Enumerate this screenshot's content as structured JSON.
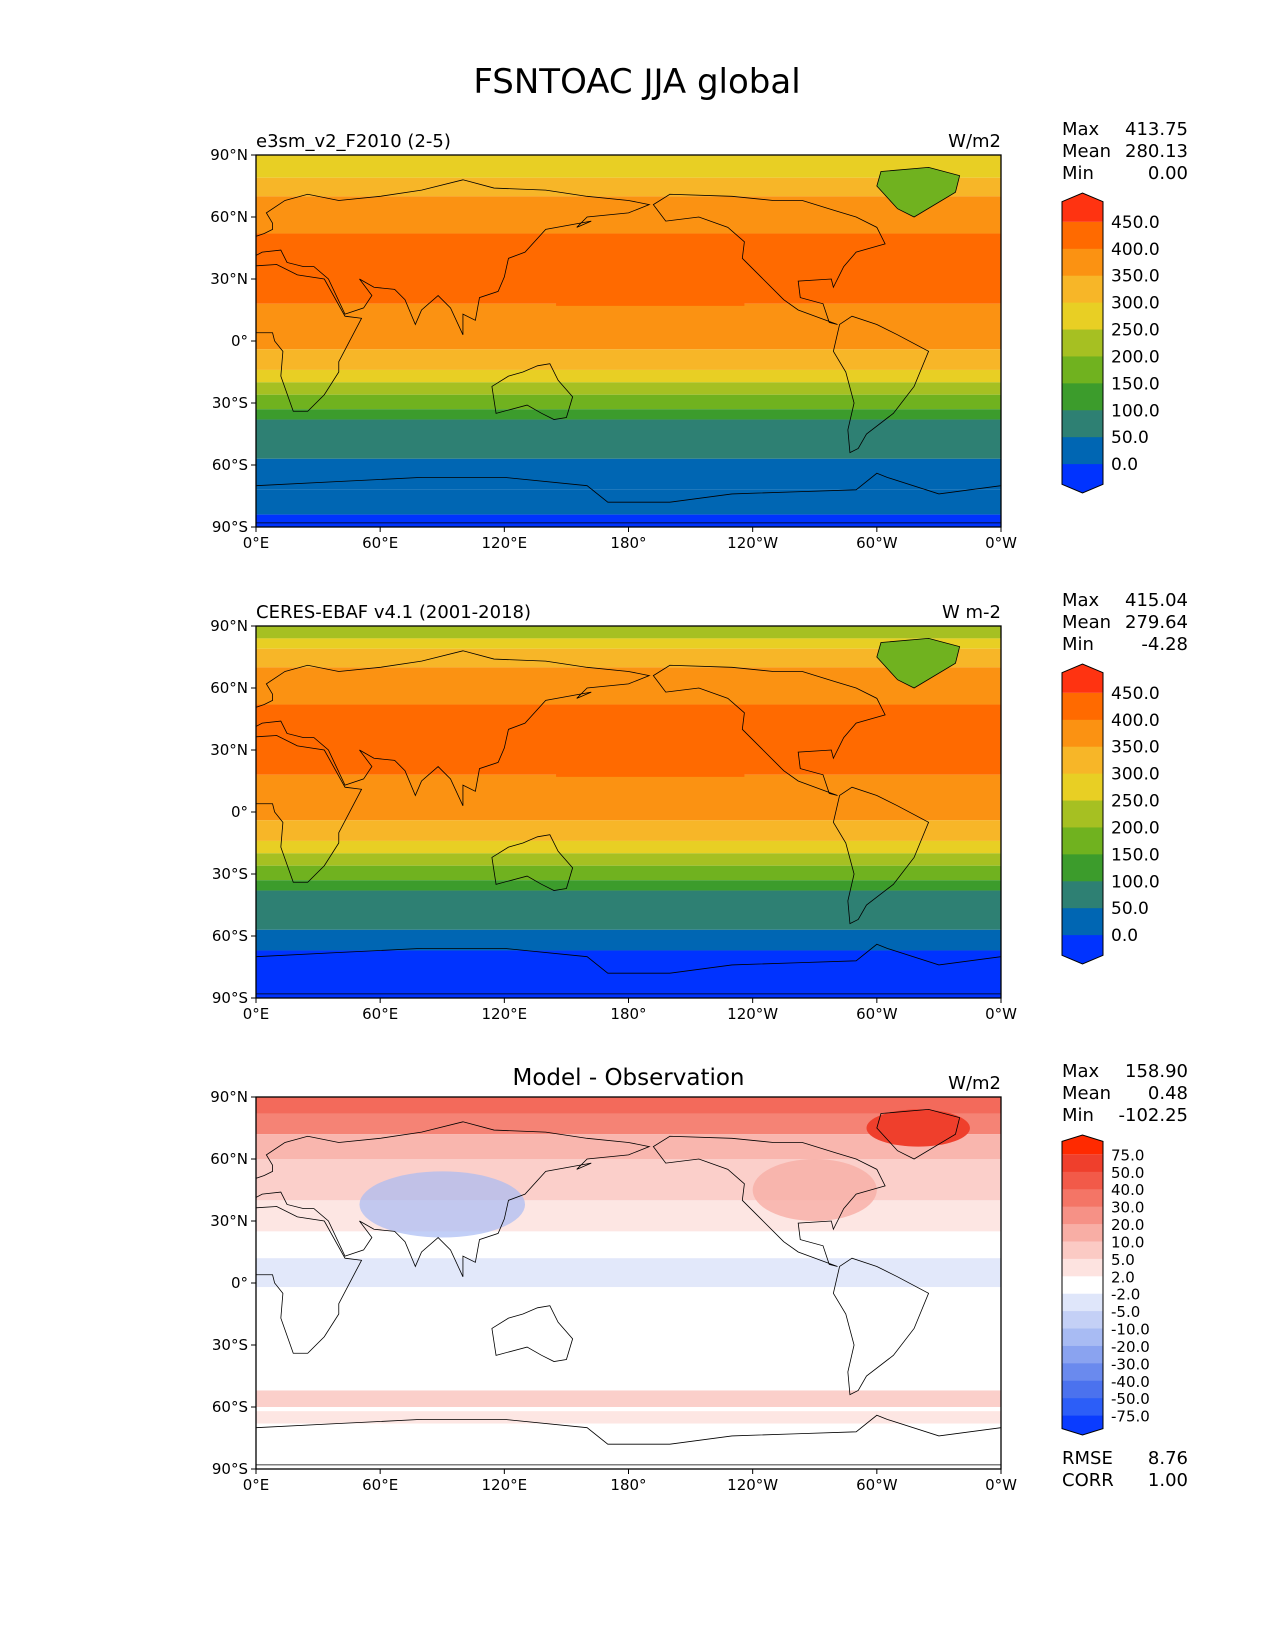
{
  "figure": {
    "title": "FSNTOAC JJA global"
  },
  "lon_ticks": [
    "0°E",
    "60°E",
    "120°E",
    "180°",
    "120°W",
    "60°W",
    "0°W"
  ],
  "lat_ticks": [
    "90°N",
    "60°N",
    "30°N",
    "0°",
    "30°S",
    "60°S",
    "90°S"
  ],
  "chart_data": [
    {
      "type": "heatmap",
      "title": "",
      "left_label": "e3sm_v2_F2010 (2-5)",
      "units": "W/m2",
      "stats": [
        {
          "label": "Max",
          "value": "413.75"
        },
        {
          "label": "Mean",
          "value": "280.13"
        },
        {
          "label": "Min",
          "value": "0.00"
        }
      ],
      "colorbar": {
        "ticks": [
          "450.0",
          "400.0",
          "350.0",
          "300.0",
          "250.0",
          "200.0",
          "150.0",
          "100.0",
          "50.0",
          "0.0"
        ],
        "colors": [
          "#0033ff",
          "#0066b3",
          "#2e8073",
          "#3c9c2c",
          "#70b21f",
          "#a6c022",
          "#e8cf24",
          "#f7b628",
          "#fb9212",
          "#ff6a00",
          "#ff3311"
        ]
      }
    },
    {
      "type": "heatmap",
      "title": "",
      "left_label": "CERES-EBAF v4.1 (2001-2018)",
      "units": "W m-2",
      "stats": [
        {
          "label": "Max",
          "value": "415.04"
        },
        {
          "label": "Mean",
          "value": "279.64"
        },
        {
          "label": "Min",
          "value": "-4.28"
        }
      ],
      "colorbar": {
        "ticks": [
          "450.0",
          "400.0",
          "350.0",
          "300.0",
          "250.0",
          "200.0",
          "150.0",
          "100.0",
          "50.0",
          "0.0"
        ],
        "colors": [
          "#0033ff",
          "#0066b3",
          "#2e8073",
          "#3c9c2c",
          "#70b21f",
          "#a6c022",
          "#e8cf24",
          "#f7b628",
          "#fb9212",
          "#ff6a00",
          "#ff3311"
        ]
      }
    },
    {
      "type": "heatmap",
      "title": "Model - Observation",
      "left_label": "",
      "units": "W/m2",
      "stats": [
        {
          "label": "Max",
          "value": "158.90"
        },
        {
          "label": "Mean",
          "value": "0.48"
        },
        {
          "label": "Min",
          "value": "-102.25"
        }
      ],
      "colorbar": {
        "ticks": [
          "75.0",
          "50.0",
          "40.0",
          "30.0",
          "20.0",
          "10.0",
          "5.0",
          "2.0",
          "-2.0",
          "-5.0",
          "-10.0",
          "-20.0",
          "-30.0",
          "-40.0",
          "-50.0",
          "-75.0"
        ],
        "colors": [
          "#0a3cff",
          "#2c5ef8",
          "#4b72ee",
          "#6a8aee",
          "#8aa3f0",
          "#a8bbf3",
          "#c4d0f6",
          "#dfe6fa",
          "#ffffff",
          "#fde3e0",
          "#fbcac4",
          "#f8aea5",
          "#f69186",
          "#f47566",
          "#f25a49",
          "#ef3f2c",
          "#ff2a00"
        ]
      },
      "metrics": [
        {
          "label": "RMSE",
          "value": "8.76"
        },
        {
          "label": "CORR",
          "value": "1.00"
        }
      ]
    }
  ]
}
